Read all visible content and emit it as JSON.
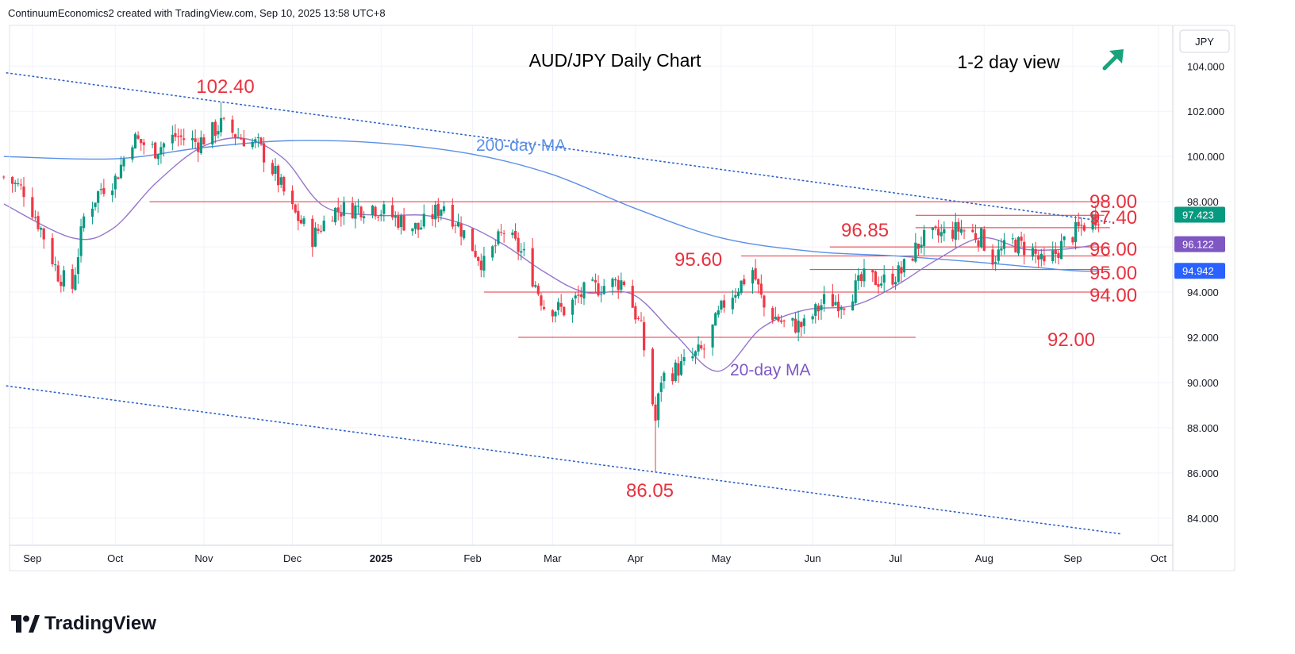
{
  "header": {
    "attribution": "ContinuumEconomics2 created with TradingView.com, Sep 10, 2025 13:58 UTC+8"
  },
  "footer": {
    "brand": "TradingView",
    "logo_icon": "tradingview-logo-icon"
  },
  "colors": {
    "up": "#089981",
    "down": "#f23645",
    "ma200": "#5b8fe6",
    "ma20": "#9575cd",
    "level": "#e8323f",
    "trendline": "#2f62c5",
    "arrow": "#1aa37a",
    "badge_price": "#089981",
    "badge_ma20": "#7e57c2",
    "badge_ma200": "#2962ff",
    "grid": "#f0f3fa"
  },
  "chart_data": {
    "type": "candlestick",
    "title": "AUD/JPY Daily Chart",
    "annotation_view": "1-2 day view",
    "view_arrow_icon": "arrow-up-right-icon",
    "currency_label": "JPY",
    "y_ticks": [
      "104.000",
      "102.000",
      "100.000",
      "98.000",
      "96.000",
      "94.000",
      "92.000",
      "90.000",
      "88.000",
      "86.000",
      "84.000"
    ],
    "x_ticks": [
      {
        "label": "Sep",
        "date": "2024-09-02"
      },
      {
        "label": "Oct",
        "date": "2024-10-01"
      },
      {
        "label": "Nov",
        "date": "2024-11-01"
      },
      {
        "label": "Dec",
        "date": "2024-12-02"
      },
      {
        "label": "2025",
        "date": "2025-01-02",
        "bold": true
      },
      {
        "label": "Feb",
        "date": "2025-02-03"
      },
      {
        "label": "Mar",
        "date": "2025-03-03"
      },
      {
        "label": "Apr",
        "date": "2025-04-01"
      },
      {
        "label": "May",
        "date": "2025-05-01"
      },
      {
        "label": "Jun",
        "date": "2025-06-02"
      },
      {
        "label": "Jul",
        "date": "2025-07-01"
      },
      {
        "label": "Aug",
        "date": "2025-08-01"
      },
      {
        "label": "Sep",
        "date": "2025-09-01"
      },
      {
        "label": "Oct",
        "date": "2025-10-01"
      }
    ],
    "y_range": [
      82.8,
      105.8
    ],
    "x_range": [
      "2024-08-25",
      "2025-10-06"
    ],
    "key_points": [
      {
        "date": "2024-08-23",
        "close": 99.1
      },
      {
        "date": "2024-08-30",
        "close": 98.5
      },
      {
        "date": "2024-09-05",
        "close": 96.8
      },
      {
        "date": "2024-09-11",
        "close": 94.8
      },
      {
        "date": "2024-09-16",
        "close": 94.2
      },
      {
        "date": "2024-09-20",
        "close": 97.3
      },
      {
        "date": "2024-09-26",
        "close": 98.6
      },
      {
        "date": "2024-10-01",
        "close": 99.0
      },
      {
        "date": "2024-10-07",
        "close": 100.8
      },
      {
        "date": "2024-10-15",
        "close": 100.3
      },
      {
        "date": "2024-10-22",
        "close": 100.9
      },
      {
        "date": "2024-10-30",
        "close": 100.6
      },
      {
        "date": "2024-11-05",
        "close": 101.2
      },
      {
        "date": "2024-11-07",
        "close": 101.4
      },
      {
        "date": "2024-11-13",
        "close": 100.9
      },
      {
        "date": "2024-11-20",
        "close": 100.5
      },
      {
        "date": "2024-11-26",
        "close": 99.2
      },
      {
        "date": "2024-12-02",
        "close": 97.6
      },
      {
        "date": "2024-12-09",
        "close": 96.4
      },
      {
        "date": "2024-12-16",
        "close": 97.6
      },
      {
        "date": "2024-12-23",
        "close": 97.7
      },
      {
        "date": "2024-12-30",
        "close": 97.8
      },
      {
        "date": "2025-01-08",
        "close": 97.2
      },
      {
        "date": "2025-01-15",
        "close": 96.8
      },
      {
        "date": "2025-01-24",
        "close": 97.9
      },
      {
        "date": "2025-01-31",
        "close": 96.6
      },
      {
        "date": "2025-02-07",
        "close": 95.2
      },
      {
        "date": "2025-02-14",
        "close": 96.7
      },
      {
        "date": "2025-02-21",
        "close": 95.6
      },
      {
        "date": "2025-02-28",
        "close": 93.4
      },
      {
        "date": "2025-03-07",
        "close": 93.2
      },
      {
        "date": "2025-03-14",
        "close": 94.0
      },
      {
        "date": "2025-03-21",
        "close": 94.3
      },
      {
        "date": "2025-03-28",
        "close": 94.5
      },
      {
        "date": "2025-04-03",
        "close": 92.3
      },
      {
        "date": "2025-04-08",
        "close": 88.3
      },
      {
        "date": "2025-04-10",
        "close": 90.2
      },
      {
        "date": "2025-04-17",
        "close": 90.7
      },
      {
        "date": "2025-04-25",
        "close": 91.5
      },
      {
        "date": "2025-05-02",
        "close": 93.5
      },
      {
        "date": "2025-05-12",
        "close": 95.0
      },
      {
        "date": "2025-05-16",
        "close": 93.3
      },
      {
        "date": "2025-05-23",
        "close": 92.6
      },
      {
        "date": "2025-05-30",
        "close": 92.5
      },
      {
        "date": "2025-06-06",
        "close": 93.6
      },
      {
        "date": "2025-06-13",
        "close": 93.6
      },
      {
        "date": "2025-06-20",
        "close": 94.6
      },
      {
        "date": "2025-06-27",
        "close": 94.5
      },
      {
        "date": "2025-07-03",
        "close": 94.9
      },
      {
        "date": "2025-07-10",
        "close": 96.3
      },
      {
        "date": "2025-07-16",
        "close": 96.5
      },
      {
        "date": "2025-07-24",
        "close": 96.8
      },
      {
        "date": "2025-07-31",
        "close": 96.4
      },
      {
        "date": "2025-08-04",
        "close": 95.5
      },
      {
        "date": "2025-08-11",
        "close": 96.2
      },
      {
        "date": "2025-08-18",
        "close": 95.8
      },
      {
        "date": "2025-08-22",
        "close": 95.1
      },
      {
        "date": "2025-08-29",
        "close": 96.2
      },
      {
        "date": "2025-09-05",
        "close": 97.0
      },
      {
        "date": "2025-09-10",
        "close": 97.42
      }
    ],
    "ma20_points": [
      {
        "date": "2024-08-23",
        "value": 97.9
      },
      {
        "date": "2024-09-16",
        "value": 96.4
      },
      {
        "date": "2024-09-30",
        "value": 96.8
      },
      {
        "date": "2024-10-15",
        "value": 98.8
      },
      {
        "date": "2024-10-31",
        "value": 100.4
      },
      {
        "date": "2024-11-15",
        "value": 100.8
      },
      {
        "date": "2024-11-29",
        "value": 99.9
      },
      {
        "date": "2024-12-13",
        "value": 97.8
      },
      {
        "date": "2024-12-31",
        "value": 97.4
      },
      {
        "date": "2025-01-17",
        "value": 97.4
      },
      {
        "date": "2025-01-31",
        "value": 97.0
      },
      {
        "date": "2025-02-14",
        "value": 96.1
      },
      {
        "date": "2025-02-28",
        "value": 94.9
      },
      {
        "date": "2025-03-14",
        "value": 94.0
      },
      {
        "date": "2025-03-31",
        "value": 93.9
      },
      {
        "date": "2025-04-15",
        "value": 92.1
      },
      {
        "date": "2025-04-30",
        "value": 90.5
      },
      {
        "date": "2025-05-15",
        "value": 92.4
      },
      {
        "date": "2025-05-30",
        "value": 93.2
      },
      {
        "date": "2025-06-16",
        "value": 93.4
      },
      {
        "date": "2025-06-30",
        "value": 94.2
      },
      {
        "date": "2025-07-15",
        "value": 95.4
      },
      {
        "date": "2025-07-31",
        "value": 96.4
      },
      {
        "date": "2025-08-15",
        "value": 95.9
      },
      {
        "date": "2025-08-29",
        "value": 95.9
      },
      {
        "date": "2025-09-10",
        "value": 96.12
      }
    ],
    "ma200_points": [
      {
        "date": "2024-08-23",
        "value": 100.0
      },
      {
        "date": "2024-10-01",
        "value": 99.9
      },
      {
        "date": "2024-11-01",
        "value": 100.4
      },
      {
        "date": "2024-12-01",
        "value": 100.7
      },
      {
        "date": "2025-01-01",
        "value": 100.6
      },
      {
        "date": "2025-02-03",
        "value": 100.1
      },
      {
        "date": "2025-03-03",
        "value": 99.2
      },
      {
        "date": "2025-04-01",
        "value": 97.7
      },
      {
        "date": "2025-05-01",
        "value": 96.4
      },
      {
        "date": "2025-06-02",
        "value": 95.8
      },
      {
        "date": "2025-07-01",
        "value": 95.6
      },
      {
        "date": "2025-08-01",
        "value": 95.3
      },
      {
        "date": "2025-09-01",
        "value": 94.95
      },
      {
        "date": "2025-09-10",
        "value": 94.94
      }
    ],
    "levels": [
      {
        "value": 98.0,
        "label": "98.00",
        "from": "2024-10-13",
        "to": "2025-09-14"
      },
      {
        "value": 97.4,
        "label": "97.40",
        "from": "2025-07-08",
        "to": "2025-09-12"
      },
      {
        "value": 96.85,
        "label": "96.85",
        "from": "2025-07-08",
        "to": "2025-09-14"
      },
      {
        "value": 96.0,
        "label": "96.00",
        "from": "2025-06-08",
        "to": "2025-09-14"
      },
      {
        "value": 95.6,
        "label": "95.60",
        "from": "2025-05-08",
        "to": "2025-09-14"
      },
      {
        "value": 95.0,
        "label": "95.00",
        "from": "2025-06-01",
        "to": "2025-09-14"
      },
      {
        "value": 94.0,
        "label": "94.00",
        "from": "2025-02-07",
        "to": "2025-09-14"
      },
      {
        "value": 92.0,
        "label": "92.00",
        "from": "2025-02-19",
        "to": "2025-07-08"
      }
    ],
    "trendlines": [
      {
        "from": {
          "date": "2024-08-24",
          "value": 103.7
        },
        "to": {
          "date": "2025-09-14",
          "value": 97.1
        }
      },
      {
        "from": {
          "date": "2024-08-24",
          "value": 89.85
        },
        "to": {
          "date": "2025-09-18",
          "value": 83.3
        }
      }
    ],
    "extremes": [
      {
        "label": "102.40",
        "date": "2024-11-07",
        "value": 102.4
      },
      {
        "label": "86.05",
        "date": "2025-04-08",
        "value": 86.05
      }
    ],
    "ma_labels": {
      "ma200": "200-day MA",
      "ma20": "20-day MA"
    },
    "price_badges": [
      {
        "label": "97.423",
        "value": 97.423,
        "kind": "price"
      },
      {
        "label": "96.122",
        "value": 96.122,
        "kind": "ma20"
      },
      {
        "label": "94.942",
        "value": 94.942,
        "kind": "ma200"
      }
    ]
  }
}
